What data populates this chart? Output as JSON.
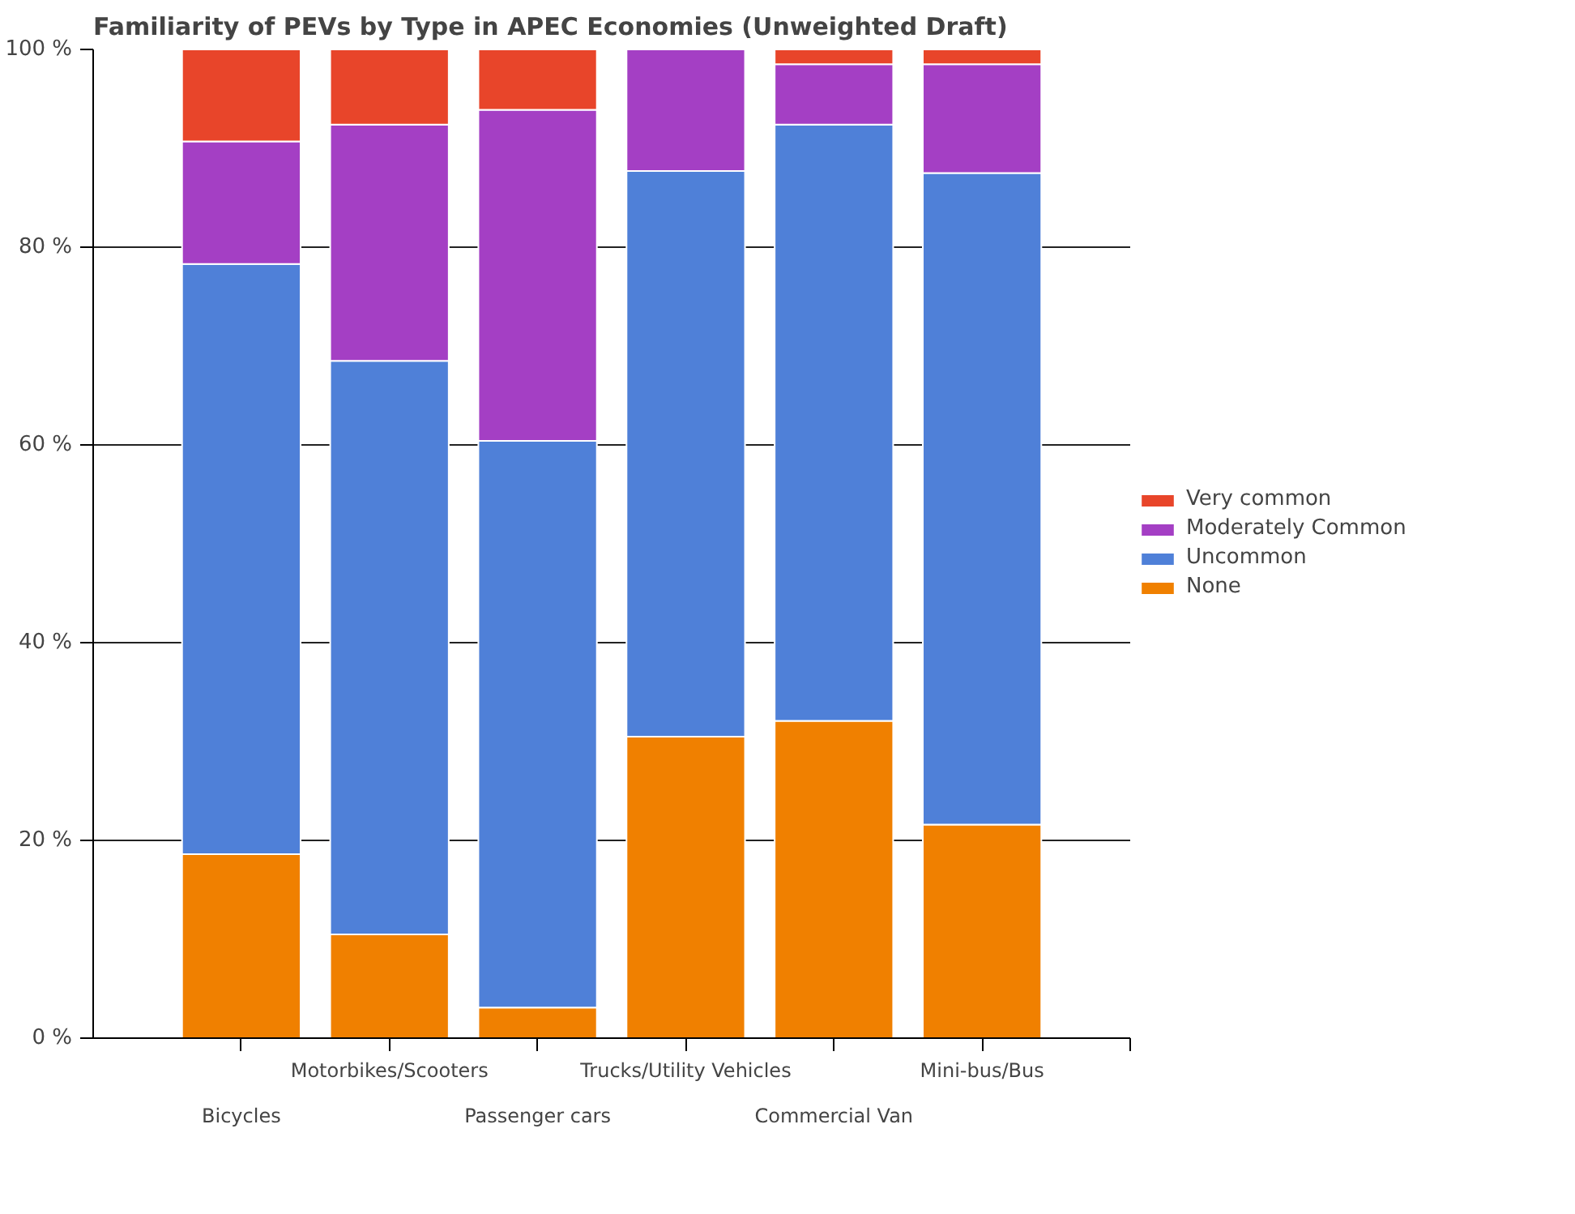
{
  "chart_data": {
    "type": "bar",
    "stacked": true,
    "title": "Familiarity of PEVs by Type in APEC Economies (Unweighted Draft)",
    "categories": [
      "Bicycles",
      "Motorbikes/Scooters",
      "Passenger cars",
      "Trucks/Utility Vehicles",
      "Commercial Van",
      "Mini-bus/Bus"
    ],
    "series": [
      {
        "name": "None",
        "color": "#f08000",
        "values": [
          18.6,
          10.5,
          3.1,
          30.5,
          32.1,
          21.6
        ]
      },
      {
        "name": "Uncommon",
        "color": "#4f80d8",
        "values": [
          59.7,
          58.0,
          57.3,
          57.2,
          60.3,
          65.9
        ]
      },
      {
        "name": "Moderately Common",
        "color": "#a43fc4",
        "values": [
          12.4,
          23.9,
          33.5,
          12.3,
          6.1,
          11.0
        ]
      },
      {
        "name": "Very common",
        "color": "#e8452a",
        "values": [
          9.3,
          7.6,
          6.1,
          0,
          1.5,
          1.5
        ]
      }
    ],
    "ylim": [
      0,
      100
    ],
    "yticks": [
      {
        "value": 0,
        "label": "0 %"
      },
      {
        "value": 20,
        "label": "20 %"
      },
      {
        "value": 40,
        "label": "40 %"
      },
      {
        "value": 60,
        "label": "60 %"
      },
      {
        "value": 80,
        "label": "80 %"
      },
      {
        "value": 100,
        "label": "100 %"
      }
    ],
    "grid": "y",
    "legend": "right"
  }
}
